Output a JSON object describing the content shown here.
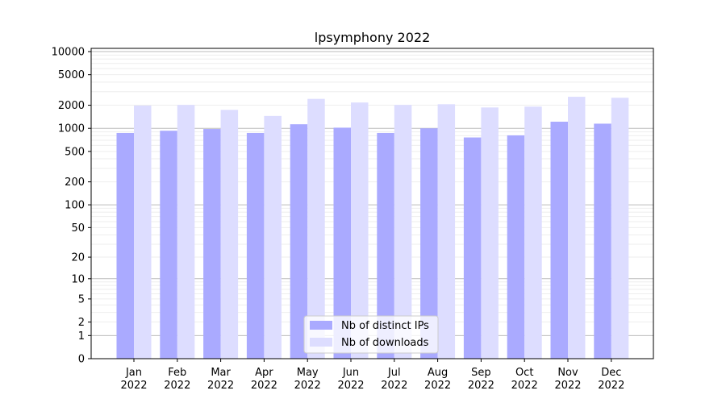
{
  "chart_data": {
    "type": "bar",
    "title": "lpsymphony 2022",
    "xlabel": "",
    "ylabel": "",
    "yscale": "symlog",
    "ylim": [
      0,
      10000
    ],
    "yticks": [
      "0",
      "1",
      "2",
      "5",
      "10",
      "20",
      "50",
      "100",
      "200",
      "500",
      "1000",
      "2000",
      "5000",
      "10000"
    ],
    "categories": [
      "Jan\n2022",
      "Feb\n2022",
      "Mar\n2022",
      "Apr\n2022",
      "May\n2022",
      "Jun\n2022",
      "Jul\n2022",
      "Aug\n2022",
      "Sep\n2022",
      "Oct\n2022",
      "Nov\n2022",
      "Dec\n2022"
    ],
    "series": [
      {
        "name": "Nb of distinct IPs",
        "color": "#aaaaff",
        "values": [
          870,
          930,
          980,
          870,
          1130,
          1020,
          870,
          1000,
          760,
          810,
          1220,
          1150
        ]
      },
      {
        "name": "Nb of downloads",
        "color": "#ddddff",
        "values": [
          1980,
          2020,
          1740,
          1450,
          2420,
          2170,
          2020,
          2060,
          1870,
          1920,
          2580,
          2500
        ]
      }
    ],
    "grid": true,
    "legend_position": "lower center"
  }
}
